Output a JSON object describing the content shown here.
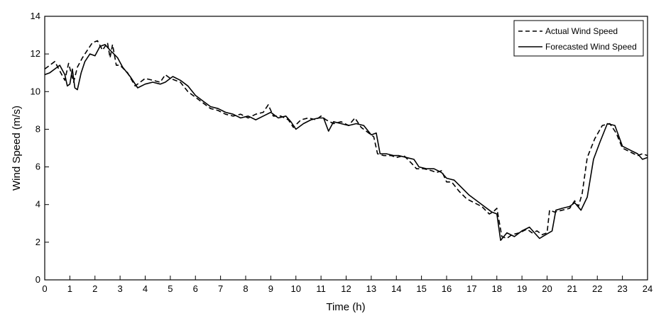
{
  "chart_data": {
    "type": "line",
    "title": "",
    "xlabel": "Time (h)",
    "ylabel": "Wind Speed (m/s)",
    "xlim": [
      0,
      24
    ],
    "ylim": [
      0,
      14
    ],
    "xticks": [
      "0",
      "1",
      "2",
      "3",
      "4",
      "5",
      "6",
      "7",
      "8",
      "9",
      "10",
      "11",
      "12",
      "13",
      "14",
      "15",
      "16",
      "17",
      "18",
      "19",
      "20",
      "21",
      "22",
      "23",
      "24"
    ],
    "yticks": [
      "0",
      "2",
      "4",
      "6",
      "8",
      "10",
      "12",
      "14"
    ],
    "grid": false,
    "legend_position": "top-right",
    "series": [
      {
        "name": "Actual Wind Speed",
        "style": "dashed",
        "color": "#000000",
        "points": [
          [
            0.0,
            11.2
          ],
          [
            0.2,
            11.4
          ],
          [
            0.4,
            11.6
          ],
          [
            0.6,
            11.1
          ],
          [
            0.8,
            10.6
          ],
          [
            0.95,
            11.5
          ],
          [
            1.05,
            11.0
          ],
          [
            1.15,
            10.5
          ],
          [
            1.3,
            11.3
          ],
          [
            1.5,
            11.8
          ],
          [
            1.7,
            12.2
          ],
          [
            1.9,
            12.6
          ],
          [
            2.1,
            12.7
          ],
          [
            2.3,
            12.2
          ],
          [
            2.5,
            12.6
          ],
          [
            2.6,
            11.8
          ],
          [
            2.7,
            12.5
          ],
          [
            2.85,
            11.4
          ],
          [
            3.0,
            11.4
          ],
          [
            3.3,
            11.0
          ],
          [
            3.6,
            10.3
          ],
          [
            3.8,
            10.5
          ],
          [
            4.0,
            10.7
          ],
          [
            4.3,
            10.6
          ],
          [
            4.6,
            10.5
          ],
          [
            4.8,
            10.9
          ],
          [
            5.0,
            10.7
          ],
          [
            5.4,
            10.5
          ],
          [
            5.7,
            10.0
          ],
          [
            6.0,
            9.7
          ],
          [
            6.3,
            9.4
          ],
          [
            6.6,
            9.1
          ],
          [
            6.9,
            9.0
          ],
          [
            7.2,
            8.8
          ],
          [
            7.5,
            8.7
          ],
          [
            7.8,
            8.8
          ],
          [
            8.1,
            8.6
          ],
          [
            8.4,
            8.8
          ],
          [
            8.7,
            8.9
          ],
          [
            8.9,
            9.3
          ],
          [
            9.1,
            8.7
          ],
          [
            9.4,
            8.7
          ],
          [
            9.7,
            8.5
          ],
          [
            9.9,
            8.1
          ],
          [
            10.2,
            8.5
          ],
          [
            10.5,
            8.6
          ],
          [
            10.8,
            8.5
          ],
          [
            11.0,
            8.7
          ],
          [
            11.2,
            8.5
          ],
          [
            11.5,
            8.3
          ],
          [
            11.8,
            8.4
          ],
          [
            12.1,
            8.2
          ],
          [
            12.35,
            8.6
          ],
          [
            12.6,
            8.1
          ],
          [
            12.9,
            7.8
          ],
          [
            13.1,
            7.6
          ],
          [
            13.25,
            6.7
          ],
          [
            13.5,
            6.6
          ],
          [
            13.8,
            6.6
          ],
          [
            14.0,
            6.5
          ],
          [
            14.3,
            6.6
          ],
          [
            14.6,
            6.2
          ],
          [
            14.8,
            5.9
          ],
          [
            15.1,
            5.9
          ],
          [
            15.4,
            5.8
          ],
          [
            15.6,
            5.7
          ],
          [
            15.8,
            5.8
          ],
          [
            16.0,
            5.2
          ],
          [
            16.2,
            5.2
          ],
          [
            16.5,
            4.7
          ],
          [
            16.8,
            4.3
          ],
          [
            17.1,
            4.1
          ],
          [
            17.4,
            3.9
          ],
          [
            17.7,
            3.5
          ],
          [
            17.85,
            3.6
          ],
          [
            18.0,
            3.8
          ],
          [
            18.2,
            2.3
          ],
          [
            18.4,
            2.2
          ],
          [
            18.6,
            2.4
          ],
          [
            18.9,
            2.5
          ],
          [
            19.2,
            2.7
          ],
          [
            19.4,
            2.5
          ],
          [
            19.6,
            2.6
          ],
          [
            19.8,
            2.4
          ],
          [
            20.0,
            2.5
          ],
          [
            20.1,
            3.7
          ],
          [
            20.3,
            3.6
          ],
          [
            20.6,
            3.7
          ],
          [
            20.9,
            3.8
          ],
          [
            21.1,
            4.2
          ],
          [
            21.25,
            3.9
          ],
          [
            21.4,
            4.6
          ],
          [
            21.6,
            6.5
          ],
          [
            21.9,
            7.5
          ],
          [
            22.2,
            8.2
          ],
          [
            22.5,
            8.3
          ],
          [
            22.75,
            7.8
          ],
          [
            23.0,
            7.0
          ],
          [
            23.3,
            6.8
          ],
          [
            23.6,
            6.6
          ],
          [
            23.8,
            6.7
          ],
          [
            24.0,
            6.6
          ]
        ]
      },
      {
        "name": "Forecasted Wind Speed",
        "style": "solid",
        "color": "#000000",
        "points": [
          [
            0.0,
            10.9
          ],
          [
            0.2,
            11.0
          ],
          [
            0.4,
            11.2
          ],
          [
            0.6,
            11.4
          ],
          [
            0.8,
            10.9
          ],
          [
            0.9,
            10.3
          ],
          [
            1.0,
            10.4
          ],
          [
            1.1,
            11.2
          ],
          [
            1.2,
            10.2
          ],
          [
            1.3,
            10.1
          ],
          [
            1.45,
            11.0
          ],
          [
            1.6,
            11.6
          ],
          [
            1.8,
            12.0
          ],
          [
            2.0,
            11.9
          ],
          [
            2.2,
            12.4
          ],
          [
            2.4,
            12.5
          ],
          [
            2.6,
            12.2
          ],
          [
            2.75,
            12.0
          ],
          [
            2.9,
            11.8
          ],
          [
            3.1,
            11.3
          ],
          [
            3.4,
            10.8
          ],
          [
            3.7,
            10.2
          ],
          [
            4.0,
            10.4
          ],
          [
            4.3,
            10.5
          ],
          [
            4.6,
            10.4
          ],
          [
            4.8,
            10.5
          ],
          [
            5.1,
            10.8
          ],
          [
            5.4,
            10.6
          ],
          [
            5.7,
            10.3
          ],
          [
            6.0,
            9.8
          ],
          [
            6.3,
            9.5
          ],
          [
            6.6,
            9.2
          ],
          [
            6.9,
            9.1
          ],
          [
            7.2,
            8.9
          ],
          [
            7.5,
            8.8
          ],
          [
            7.8,
            8.6
          ],
          [
            8.1,
            8.7
          ],
          [
            8.4,
            8.5
          ],
          [
            8.7,
            8.7
          ],
          [
            9.0,
            8.9
          ],
          [
            9.3,
            8.6
          ],
          [
            9.6,
            8.7
          ],
          [
            9.8,
            8.4
          ],
          [
            10.0,
            8.0
          ],
          [
            10.3,
            8.3
          ],
          [
            10.6,
            8.5
          ],
          [
            10.9,
            8.6
          ],
          [
            11.1,
            8.6
          ],
          [
            11.3,
            7.9
          ],
          [
            11.5,
            8.4
          ],
          [
            11.8,
            8.3
          ],
          [
            12.1,
            8.2
          ],
          [
            12.4,
            8.3
          ],
          [
            12.7,
            8.2
          ],
          [
            13.0,
            7.7
          ],
          [
            13.2,
            7.8
          ],
          [
            13.35,
            6.7
          ],
          [
            13.6,
            6.7
          ],
          [
            13.9,
            6.6
          ],
          [
            14.1,
            6.6
          ],
          [
            14.4,
            6.5
          ],
          [
            14.7,
            6.4
          ],
          [
            14.9,
            6.0
          ],
          [
            15.2,
            5.9
          ],
          [
            15.5,
            5.9
          ],
          [
            15.8,
            5.7
          ],
          [
            16.0,
            5.4
          ],
          [
            16.3,
            5.3
          ],
          [
            16.6,
            4.9
          ],
          [
            16.9,
            4.5
          ],
          [
            17.2,
            4.2
          ],
          [
            17.5,
            3.9
          ],
          [
            17.8,
            3.6
          ],
          [
            18.0,
            3.5
          ],
          [
            18.15,
            2.1
          ],
          [
            18.4,
            2.5
          ],
          [
            18.7,
            2.3
          ],
          [
            19.0,
            2.6
          ],
          [
            19.3,
            2.8
          ],
          [
            19.5,
            2.5
          ],
          [
            19.7,
            2.2
          ],
          [
            19.95,
            2.4
          ],
          [
            20.2,
            2.6
          ],
          [
            20.35,
            3.7
          ],
          [
            20.6,
            3.8
          ],
          [
            20.9,
            3.9
          ],
          [
            21.1,
            4.1
          ],
          [
            21.35,
            3.7
          ],
          [
            21.6,
            4.4
          ],
          [
            21.85,
            6.4
          ],
          [
            22.1,
            7.3
          ],
          [
            22.4,
            8.3
          ],
          [
            22.7,
            8.2
          ],
          [
            23.0,
            7.1
          ],
          [
            23.3,
            6.9
          ],
          [
            23.6,
            6.7
          ],
          [
            23.8,
            6.4
          ],
          [
            24.0,
            6.5
          ]
        ]
      }
    ]
  }
}
